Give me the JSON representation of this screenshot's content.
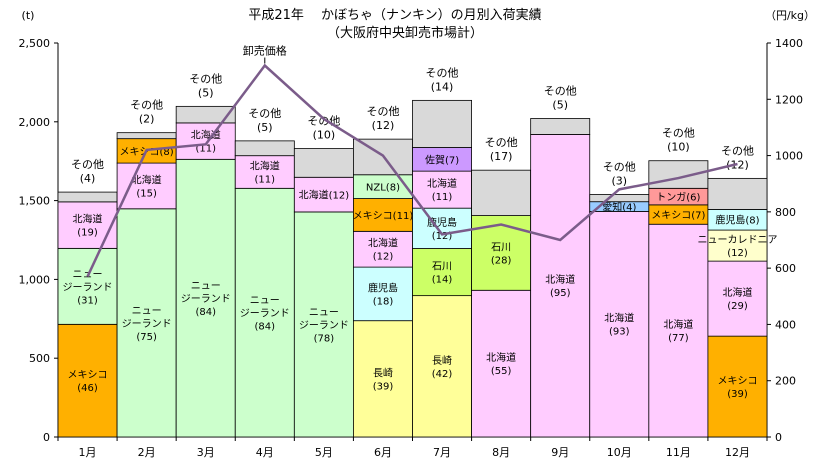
{
  "chart_data": {
    "type": "bar",
    "title": "平成21年　 かぼちゃ（ナンキン）の月別入荷実績",
    "subtitle": "（大阪府中央卸売市場計）",
    "y_unit_left": "(t)",
    "y_unit_right": "（円/kg）",
    "ylim_left": [
      0,
      2500
    ],
    "ylim_right": [
      0,
      1400
    ],
    "yticks_left": [
      "0",
      "500",
      "1,000",
      "1,500",
      "2,000",
      "2,500"
    ],
    "yticks_right": [
      "0",
      "200",
      "400",
      "600",
      "800",
      "1000",
      "1200",
      "1400"
    ],
    "categories": [
      "1月",
      "2月",
      "3月",
      "4月",
      "5月",
      "6月",
      "7月",
      "8月",
      "9月",
      "10月",
      "11月",
      "12月"
    ],
    "months": [
      {
        "segments": [
          {
            "label": "メキシコ",
            "pct": "(46)",
            "value": 715,
            "color": "#ffb000"
          },
          {
            "label": "ニュー\nジーランド",
            "pct": "(31)",
            "value": 482,
            "color": "#ccffcc"
          },
          {
            "label": "北海道",
            "pct": "(19)",
            "value": 295,
            "color": "#ffccff"
          },
          {
            "label": "",
            "pct": "",
            "value": 62,
            "color": "#d9d9d9"
          }
        ],
        "top_label": "その他",
        "top_pct": "(4)"
      },
      {
        "segments": [
          {
            "label": "ニュー\nジーランド",
            "pct": "(75)",
            "value": 1448,
            "color": "#ccffcc"
          },
          {
            "label": "北海道",
            "pct": "(15)",
            "value": 290,
            "color": "#ffccff"
          },
          {
            "label": "メキシコ(8)",
            "pct": "",
            "value": 155,
            "color": "#ffb000"
          },
          {
            "label": "",
            "pct": "",
            "value": 38,
            "color": "#d9d9d9"
          }
        ],
        "top_label": "その他",
        "top_pct": "(2)"
      },
      {
        "segments": [
          {
            "label": "ニュー\nジーランド",
            "pct": "(84)",
            "value": 1762,
            "color": "#ccffcc"
          },
          {
            "label": "北海道",
            "pct": "(11)",
            "value": 231,
            "color": "#ffccff"
          },
          {
            "label": "",
            "pct": "",
            "value": 105,
            "color": "#d9d9d9"
          }
        ],
        "top_label": "その他",
        "top_pct": "(5)"
      },
      {
        "segments": [
          {
            "label": "ニュー\nジーランド",
            "pct": "(84)",
            "value": 1578,
            "color": "#ccffcc"
          },
          {
            "label": "北海道",
            "pct": "(11)",
            "value": 207,
            "color": "#ffccff"
          },
          {
            "label": "",
            "pct": "",
            "value": 94,
            "color": "#d9d9d9"
          }
        ],
        "top_label": "その他",
        "top_pct": "(5)"
      },
      {
        "segments": [
          {
            "label": "ニュー\nジーランド",
            "pct": "(78)",
            "value": 1428,
            "color": "#ccffcc"
          },
          {
            "label": "北海道(12)",
            "pct": "",
            "value": 220,
            "color": "#ffccff"
          },
          {
            "label": "",
            "pct": "",
            "value": 182,
            "color": "#d9d9d9"
          }
        ],
        "top_label": "その他",
        "top_pct": "(10)"
      },
      {
        "segments": [
          {
            "label": "長崎",
            "pct": "(39)",
            "value": 738,
            "color": "#ffff99"
          },
          {
            "label": "鹿児島",
            "pct": "(18)",
            "value": 340,
            "color": "#ccffff"
          },
          {
            "label": "北海道",
            "pct": "(12)",
            "value": 227,
            "color": "#ffccff"
          },
          {
            "label": "メキシコ(11)",
            "pct": "",
            "value": 208,
            "color": "#ffb000"
          },
          {
            "label": "NZL(8)",
            "pct": "",
            "value": 151,
            "color": "#ccffcc"
          },
          {
            "label": "",
            "pct": "",
            "value": 226,
            "color": "#d9d9d9"
          }
        ],
        "top_label": "その他",
        "top_pct": "(12)"
      },
      {
        "segments": [
          {
            "label": "長崎",
            "pct": "(42)",
            "value": 897,
            "color": "#ffff99"
          },
          {
            "label": "石川",
            "pct": "(14)",
            "value": 299,
            "color": "#ccff66"
          },
          {
            "label": "鹿児島",
            "pct": "(12)",
            "value": 256,
            "color": "#ccffff"
          },
          {
            "label": "北海道",
            "pct": "(11)",
            "value": 235,
            "color": "#ffccff"
          },
          {
            "label": "佐賀(7)",
            "pct": "",
            "value": 150,
            "color": "#cc99ff"
          },
          {
            "label": "",
            "pct": "",
            "value": 299,
            "color": "#d9d9d9"
          }
        ],
        "top_label": "その他",
        "top_pct": "(14)"
      },
      {
        "segments": [
          {
            "label": "北海道",
            "pct": "(55)",
            "value": 931,
            "color": "#ffccff"
          },
          {
            "label": "石川",
            "pct": "(28)",
            "value": 474,
            "color": "#ccff66"
          },
          {
            "label": "",
            "pct": "",
            "value": 288,
            "color": "#d9d9d9"
          }
        ],
        "top_label": "その他",
        "top_pct": "(17)"
      },
      {
        "segments": [
          {
            "label": "北海道",
            "pct": "(95)",
            "value": 1920,
            "color": "#ffccff"
          },
          {
            "label": "",
            "pct": "",
            "value": 101,
            "color": "#d9d9d9"
          }
        ],
        "top_label": "その他",
        "top_pct": "(5)"
      },
      {
        "segments": [
          {
            "label": "北海道",
            "pct": "(93)",
            "value": 1431,
            "color": "#ffccff"
          },
          {
            "label": "愛知(4)",
            "pct": "",
            "value": 62,
            "color": "#99ccff"
          },
          {
            "label": "",
            "pct": "",
            "value": 46,
            "color": "#d9d9d9"
          }
        ],
        "top_label": "その他",
        "top_pct": "(3)"
      },
      {
        "segments": [
          {
            "label": "北海道",
            "pct": "(77)",
            "value": 1350,
            "color": "#ffccff"
          },
          {
            "label": "メキシコ(7)",
            "pct": "",
            "value": 123,
            "color": "#ffb000"
          },
          {
            "label": "トンガ(6)",
            "pct": "",
            "value": 105,
            "color": "#ff9999"
          },
          {
            "label": "",
            "pct": "",
            "value": 175,
            "color": "#d9d9d9"
          }
        ],
        "top_label": "その他",
        "top_pct": "(10)"
      },
      {
        "segments": [
          {
            "label": "メキシコ",
            "pct": "(39)",
            "value": 640,
            "color": "#ffb000"
          },
          {
            "label": "北海道",
            "pct": "(29)",
            "value": 476,
            "color": "#ffccff"
          },
          {
            "label": "ニューカレドニア",
            "pct": "(12)",
            "value": 197,
            "color": "#ffffcc"
          },
          {
            "label": "鹿児島(8)",
            "pct": "",
            "value": 131,
            "color": "#ccffff"
          },
          {
            "label": "",
            "pct": "",
            "value": 197,
            "color": "#d9d9d9"
          }
        ],
        "top_label": "その他",
        "top_pct": "(12)"
      }
    ],
    "price_series": {
      "values": [
        570,
        1020,
        1040,
        1320,
        1130,
        1000,
        720,
        755,
        700,
        880,
        920,
        970
      ],
      "color": "#7b5c8a"
    },
    "price_annotation": "卸売価格"
  }
}
